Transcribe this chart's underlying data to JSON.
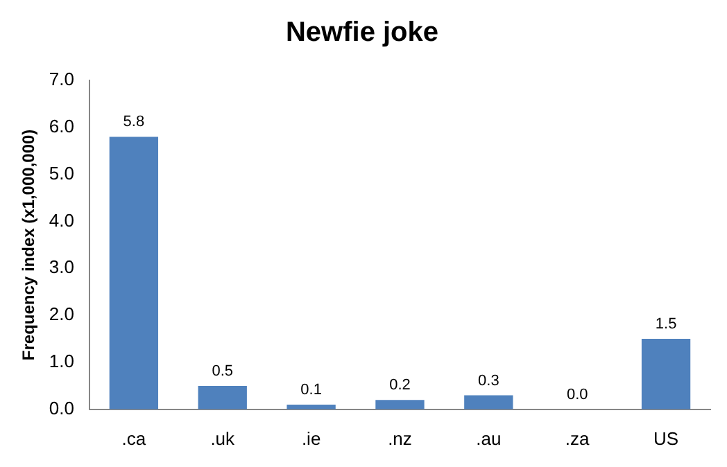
{
  "chart_data": {
    "type": "bar",
    "title": "Newfie joke",
    "ylabel": "Frequency index (x1,000,000)",
    "categories": [
      ".ca",
      ".uk",
      ".ie",
      ".nz",
      ".au",
      ".za",
      "US"
    ],
    "values": [
      5.8,
      0.5,
      0.1,
      0.2,
      0.3,
      0.0,
      1.5
    ],
    "color": "#4f81bd",
    "ylim": [
      0,
      7
    ],
    "yticks": [
      {
        "value": 0,
        "label": "0.0"
      },
      {
        "value": 1,
        "label": "1.0"
      },
      {
        "value": 2,
        "label": "2.0"
      },
      {
        "value": 3,
        "label": "3.0"
      },
      {
        "value": 4,
        "label": "4.0"
      },
      {
        "value": 5,
        "label": "5.0"
      },
      {
        "value": 6,
        "label": "6.0"
      },
      {
        "value": 7,
        "label": "7.0"
      }
    ],
    "value_labels": [
      "5.8",
      "0.5",
      "0.1",
      "0.2",
      "0.3",
      "0.0",
      "1.5"
    ],
    "grid": false,
    "legend": false
  }
}
